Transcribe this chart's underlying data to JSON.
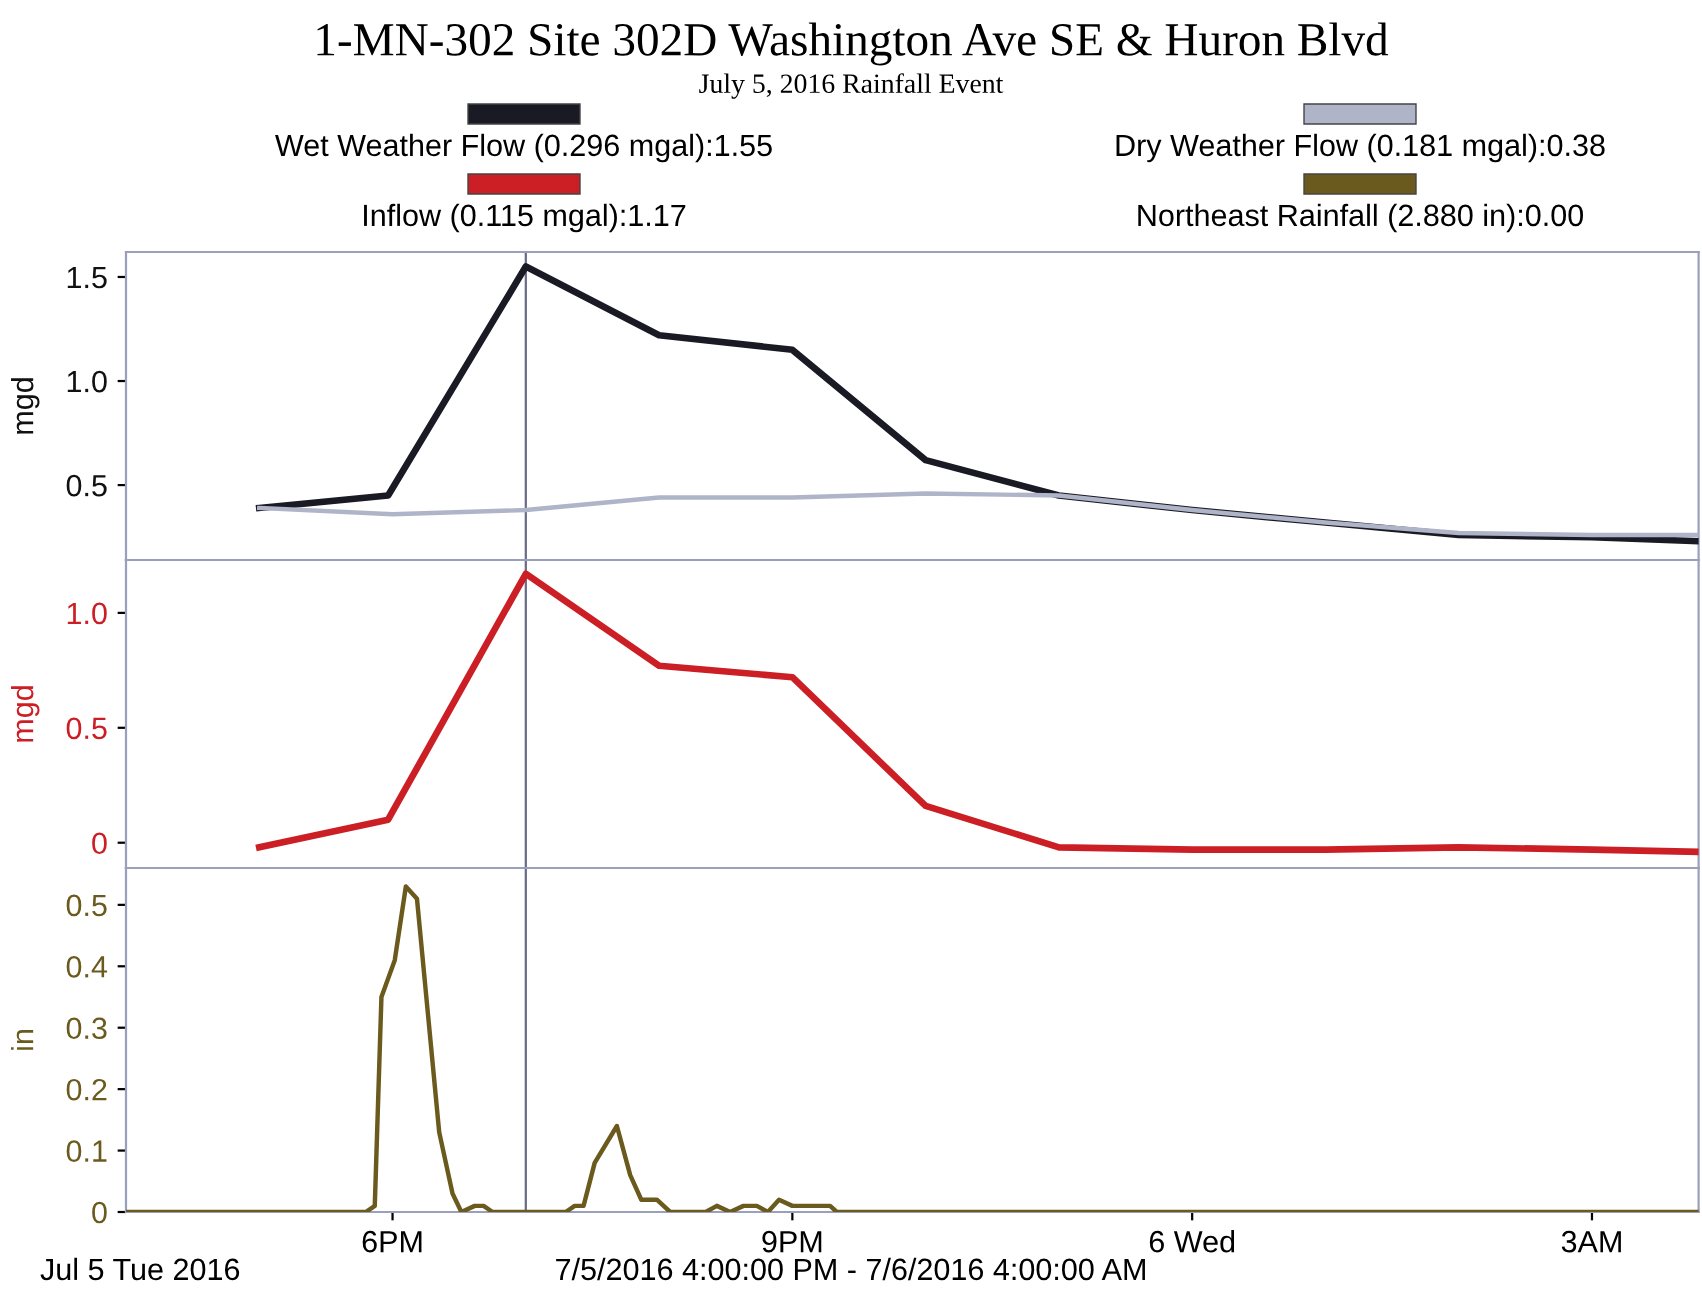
{
  "chart_data": [
    {
      "type": "line",
      "title": "1-MN-302 Site 302D Washington Ave SE & Huron Blvd",
      "subtitle": "July 5, 2016 Rainfall Event",
      "ylabel": "mgd",
      "legend": "top",
      "tick_labels": "y",
      "xlim": [
        "2016-07-05T16:00",
        "2016-07-06T03:48"
      ],
      "xticks": [
        {
          "value": "2016-07-05T18:00",
          "label": null
        },
        {
          "value": "2016-07-05T21:00",
          "label": null
        },
        {
          "value": "2016-07-06T00:00",
          "label": null
        },
        {
          "value": "2016-07-06T03:00",
          "label": null
        }
      ],
      "ylim": [
        0.14,
        1.62
      ],
      "yticks": [
        0.5,
        {
          "value": 1.0,
          "label": "1.0"
        },
        1.5
      ],
      "ref_lines": [
        {
          "axis": "x",
          "value": "2016-07-05T19:00",
          "color": "#6a6a88"
        }
      ],
      "series": [
        {
          "name": "Wet Weather Flow (0.296 mgal):1.55",
          "color": "#1a1a24",
          "x": [
            "2016-07-05T17:00",
            "2016-07-05T17:58",
            "2016-07-05T19:00",
            "2016-07-05T20:00",
            "2016-07-05T21:00",
            "2016-07-05T22:00",
            "2016-07-05T23:00",
            "2016-07-06T00:00",
            "2016-07-06T01:00",
            "2016-07-06T02:00",
            "2016-07-06T03:00",
            "2016-07-06T03:48"
          ],
          "values": [
            0.39,
            0.45,
            1.55,
            1.22,
            1.15,
            0.62,
            0.45,
            0.38,
            0.32,
            0.26,
            0.25,
            0.23
          ]
        },
        {
          "name": "Dry Weather Flow (0.181 mgal):0.38",
          "color": "#b0b4c8",
          "x": [
            "2016-07-05T17:00",
            "2016-07-05T18:00",
            "2016-07-05T19:00",
            "2016-07-05T20:00",
            "2016-07-05T21:00",
            "2016-07-05T22:00",
            "2016-07-05T23:00",
            "2016-07-06T00:00",
            "2016-07-06T01:00",
            "2016-07-06T02:00",
            "2016-07-06T03:00",
            "2016-07-06T03:48"
          ],
          "values": [
            0.39,
            0.36,
            0.38,
            0.44,
            0.44,
            0.46,
            0.45,
            0.38,
            0.32,
            0.27,
            0.26,
            0.26
          ]
        }
      ]
    },
    {
      "type": "line",
      "ylabel": "mgd",
      "tick_labels": "y",
      "legend": "top",
      "xlim": [
        "2016-07-05T16:00",
        "2016-07-06T03:48"
      ],
      "xticks": [
        {
          "value": "2016-07-05T18:00",
          "label": null
        },
        {
          "value": "2016-07-05T21:00",
          "label": null
        },
        {
          "value": "2016-07-06T00:00",
          "label": null
        },
        {
          "value": "2016-07-06T03:00",
          "label": null
        }
      ],
      "ylim": [
        -0.11,
        1.23
      ],
      "yticks": [
        0,
        0.5,
        {
          "value": 1.0,
          "label": "1.0"
        }
      ],
      "ref_lines": [
        {
          "axis": "x",
          "value": "2016-07-05T19:00",
          "color": "#6a6a88"
        }
      ],
      "series": [
        {
          "name": "Inflow (0.115 mgal):1.17",
          "color": "#cc1f25",
          "x": [
            "2016-07-05T17:00",
            "2016-07-05T17:58",
            "2016-07-05T19:00",
            "2016-07-05T20:00",
            "2016-07-05T21:00",
            "2016-07-05T22:00",
            "2016-07-05T23:00",
            "2016-07-06T00:00",
            "2016-07-06T01:00",
            "2016-07-06T02:00",
            "2016-07-06T03:00",
            "2016-07-06T03:48"
          ],
          "values": [
            -0.02,
            0.1,
            1.17,
            0.77,
            0.72,
            0.16,
            -0.02,
            -0.03,
            -0.03,
            -0.02,
            -0.03,
            -0.04
          ]
        }
      ]
    },
    {
      "type": "line",
      "ylabel": "in",
      "legend": "top",
      "xlim": [
        "2016-07-05T16:00",
        "2016-07-06T03:48"
      ],
      "xticks": [
        {
          "value": "2016-07-05T18:00",
          "label": "6PM"
        },
        {
          "value": "2016-07-05T21:00",
          "label": "9PM"
        },
        {
          "value": "2016-07-06T00:00",
          "label": "6 Wed"
        },
        {
          "value": "2016-07-06T03:00",
          "label": "3AM"
        }
      ],
      "ylim": [
        0,
        0.56
      ],
      "yticks": [
        0,
        0.1,
        0.2,
        0.3,
        0.4,
        0.5
      ],
      "ref_lines": [
        {
          "axis": "x",
          "value": "2016-07-05T19:00",
          "color": "#6a6a88"
        }
      ],
      "annotations": [
        "Jul 5 Tue 2016",
        "7/5/2016 4:00:00 PM - 7/6/2016 4:00:00 AM"
      ],
      "series": [
        {
          "name": "Northeast Rainfall (2.880 in):0.00",
          "color": "#6b5a1e",
          "x": [
            "2016-07-05T16:00",
            "2016-07-05T17:48",
            "2016-07-05T17:52",
            "2016-07-05T17:55",
            "2016-07-05T18:01",
            "2016-07-05T18:06",
            "2016-07-05T18:11",
            "2016-07-05T18:21",
            "2016-07-05T18:27",
            "2016-07-05T18:31",
            "2016-07-05T18:37",
            "2016-07-05T18:41",
            "2016-07-05T18:45",
            "2016-07-05T19:18",
            "2016-07-05T19:22",
            "2016-07-05T19:26",
            "2016-07-05T19:31",
            "2016-07-05T19:41",
            "2016-07-05T19:47",
            "2016-07-05T19:52",
            "2016-07-05T19:59",
            "2016-07-05T20:05",
            "2016-07-05T20:21",
            "2016-07-05T20:26",
            "2016-07-05T20:32",
            "2016-07-05T20:38",
            "2016-07-05T20:44",
            "2016-07-05T20:49",
            "2016-07-05T20:54",
            "2016-07-05T21:00",
            "2016-07-05T21:17",
            "2016-07-05T21:20",
            "2016-07-06T03:48"
          ],
          "values": [
            0,
            0,
            0.01,
            0.35,
            0.41,
            0.53,
            0.51,
            0.13,
            0.03,
            0,
            0.01,
            0.01,
            0,
            0,
            0.01,
            0.01,
            0.08,
            0.14,
            0.06,
            0.02,
            0.02,
            0,
            0,
            0.01,
            0,
            0.01,
            0.01,
            0,
            0.02,
            0.01,
            0.01,
            0,
            0
          ]
        }
      ]
    }
  ]
}
